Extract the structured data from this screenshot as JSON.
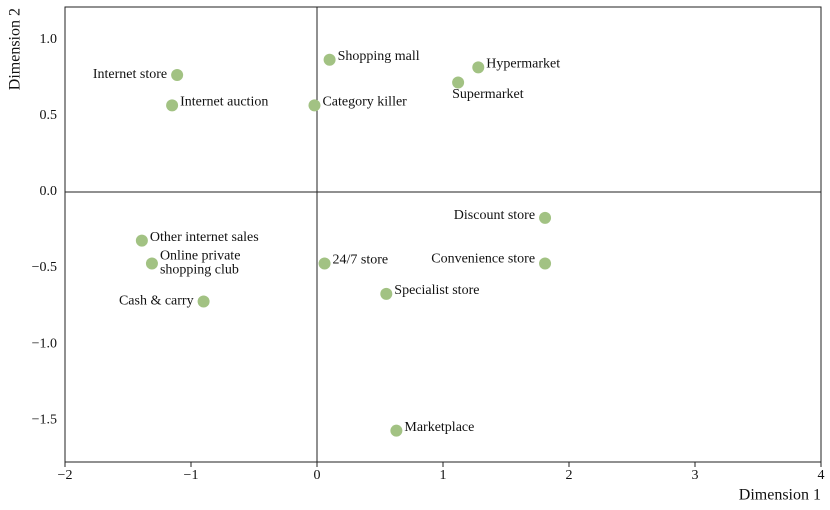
{
  "chart_data": {
    "type": "scatter",
    "x_label": "Dimension 1",
    "y_label": "Dimension 2",
    "color": "#a2c283",
    "xlim": [
      -2,
      4
    ],
    "ylim": [
      -1.776,
      1.217
    ],
    "xticks": [
      {
        "value": -2,
        "label": "−2"
      },
      {
        "value": -1,
        "label": "−1"
      },
      0,
      1,
      2,
      3,
      4
    ],
    "yticks": [
      {
        "value": -1.5,
        "label": "−1.5"
      },
      {
        "value": -1.0,
        "label": "−1.0"
      },
      {
        "value": -0.5,
        "label": "−0.5"
      },
      {
        "value": 0,
        "label": "0.0"
      },
      {
        "value": 0.5,
        "label": "0.5"
      },
      {
        "value": 1.0,
        "label": "1.0"
      }
    ],
    "labels": [
      "Internet store",
      "Internet auction",
      "Shopping mall",
      "Category killer",
      "Hypermarket",
      "Supermarket",
      "Discount store",
      "Other internet sales",
      [
        "Online private",
        "shopping club"
      ],
      "24/7 store",
      "Convenience store",
      "Cash & carry",
      "Specialist store",
      "Marketplace"
    ],
    "x": [
      -1.11,
      -1.15,
      0.1,
      -0.02,
      1.28,
      1.12,
      1.81,
      -1.39,
      -1.31,
      0.06,
      1.81,
      -0.9,
      0.55,
      0.63
    ],
    "y": [
      0.77,
      0.57,
      0.87,
      0.57,
      0.82,
      0.72,
      -0.17,
      -0.32,
      -0.47,
      -0.47,
      -0.47,
      -0.72,
      -0.67,
      -1.57
    ]
  }
}
